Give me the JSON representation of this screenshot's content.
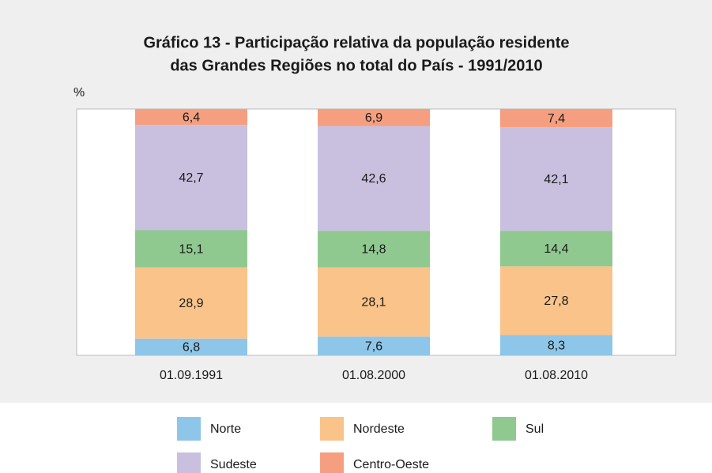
{
  "chart_data": {
    "type": "stacked_bar",
    "title": [
      "Gráfico 13 - Participação relativa da população residente",
      "das Grandes Regiões no total do País - 1991/2010"
    ],
    "ylabel": "%",
    "categories": [
      "01.09.1991",
      "01.08.2000",
      "01.08.2010"
    ],
    "ylim": [
      0,
      100
    ],
    "series": [
      {
        "name": "Norte",
        "color": "#8dc6e8",
        "values": [
          6.8,
          7.6,
          8.3
        ],
        "value_labels": [
          "6,8",
          "7,6",
          "8,3"
        ]
      },
      {
        "name": "Nordeste",
        "color": "#f9c38a",
        "values": [
          28.9,
          28.1,
          27.8
        ],
        "value_labels": [
          "28,9",
          "28,1",
          "27,8"
        ]
      },
      {
        "name": "Sul",
        "color": "#8fc990",
        "values": [
          15.1,
          14.8,
          14.4
        ],
        "value_labels": [
          "15,1",
          "14,8",
          "14,4"
        ]
      },
      {
        "name": "Sudeste",
        "color": "#c9c0df",
        "values": [
          42.7,
          42.6,
          42.1
        ],
        "value_labels": [
          "42,7",
          "42,6",
          "42,1"
        ]
      },
      {
        "name": "Centro-Oeste",
        "color": "#f59f80",
        "values": [
          6.4,
          6.9,
          7.4
        ],
        "value_labels": [
          "6,4",
          "6,9",
          "7,4"
        ]
      }
    ]
  }
}
